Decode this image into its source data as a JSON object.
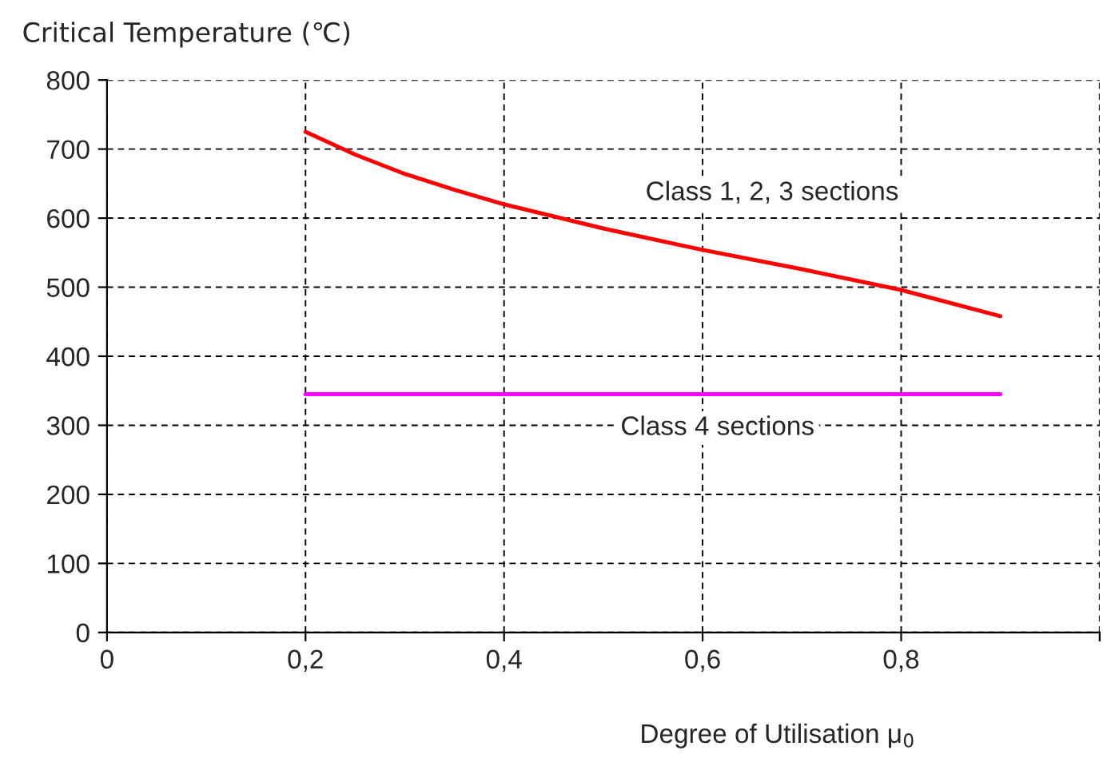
{
  "chart_data": {
    "type": "line",
    "ylabel": "Critical Temperature (℃)",
    "xlabel": "Degree of Utilisation μ$_{0}$",
    "series": [
      {
        "color": "#ff0000",
        "x": [
          0.2,
          0.25,
          0.3,
          0.35,
          0.4,
          0.5,
          0.6,
          0.7,
          0.8,
          0.9
        ],
        "values": [
          725,
          692,
          664,
          641,
          620,
          585,
          554,
          526,
          496,
          458
        ]
      },
      {
        "color": "#ff00ff",
        "x": [
          0.2,
          0.9
        ],
        "values": [
          345,
          345
        ]
      }
    ],
    "annotations": [
      "Class 1, 2, 3 sections",
      "Class 4 sections"
    ],
    "xlim": [
      0,
      1.0
    ],
    "xticks": [
      0,
      {
        "value": 0.2,
        "label": "0,2"
      },
      {
        "value": 0.4,
        "label": "0,4"
      },
      {
        "value": 0.6,
        "label": "0,6"
      },
      {
        "value": 0.8,
        "label": "0,8"
      },
      {
        "value": 1.0,
        "label": null
      }
    ],
    "ylim": [
      0,
      800
    ],
    "yticks": [
      0,
      100,
      200,
      300,
      400,
      500,
      600,
      700,
      800
    ],
    "grid": true,
    "line_style": "solid",
    "marker": "none",
    "legend": false
  }
}
